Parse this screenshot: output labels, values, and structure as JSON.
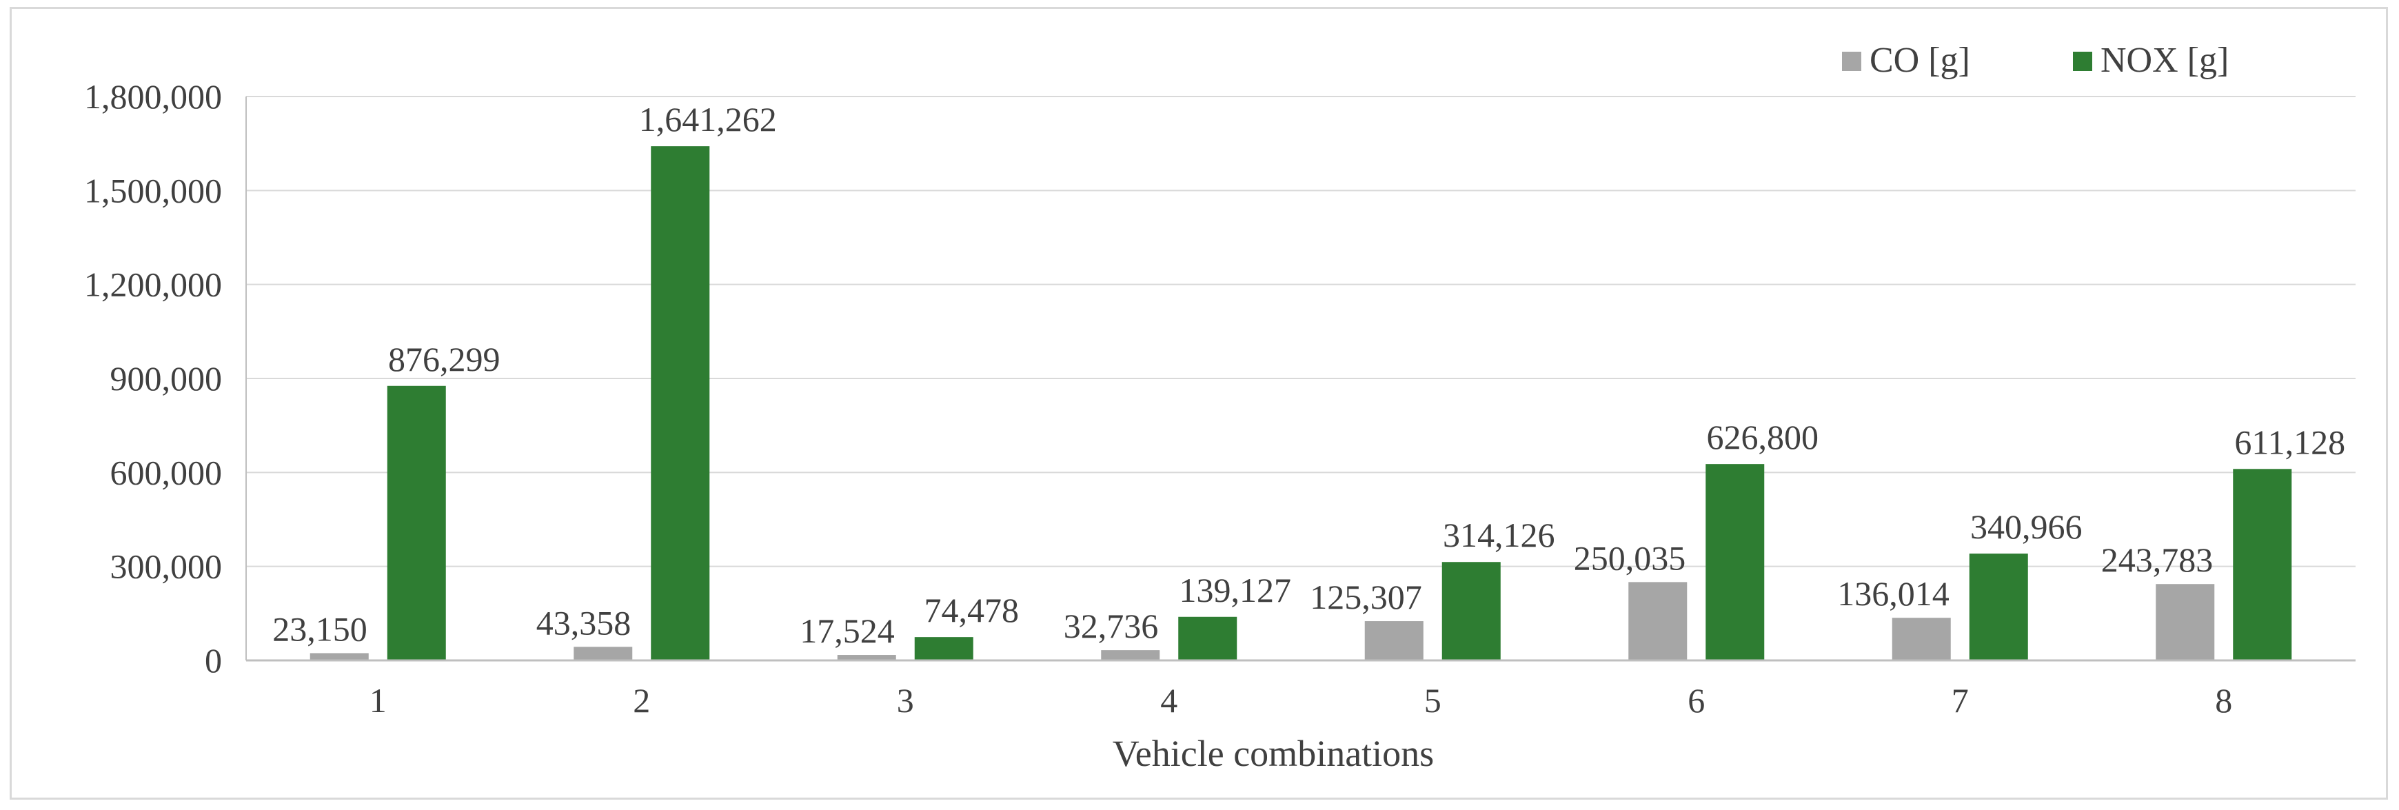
{
  "chart_data": {
    "type": "bar",
    "title": "",
    "xlabel": "Vehicle  combinations",
    "ylabel": "",
    "categories": [
      "1",
      "2",
      "3",
      "4",
      "5",
      "6",
      "7",
      "8"
    ],
    "series": [
      {
        "name": "CO [g]",
        "color": "#a6a6a6",
        "values": [
          23150,
          43358,
          17524,
          32736,
          125307,
          250035,
          136014,
          243783
        ],
        "labels": [
          "23,150",
          "43,358",
          "17,524",
          "32,736",
          "125,307",
          "250,035",
          "136,014",
          "243,783"
        ]
      },
      {
        "name": "NOX [g]",
        "color": "#2e7d32",
        "values": [
          876299,
          1641262,
          74478,
          139127,
          314126,
          626800,
          340966,
          611128
        ],
        "labels": [
          "876,299",
          "1,641,262",
          "74,478",
          "139,127",
          "314,126",
          "626,800",
          "340,966",
          "611,128"
        ]
      }
    ],
    "ylim": [
      0,
      1800000
    ],
    "yticks": [
      0,
      300000,
      600000,
      900000,
      1200000,
      1500000,
      1800000
    ],
    "ytick_labels": [
      "0",
      "300,000",
      "600,000",
      "900,000",
      "1,200,000",
      "1,500,000",
      "1,800,000"
    ],
    "grid": true,
    "legend_position": "top-right",
    "gridline_color": "#d9d9d9",
    "axis_color": "#bfbfbf"
  }
}
